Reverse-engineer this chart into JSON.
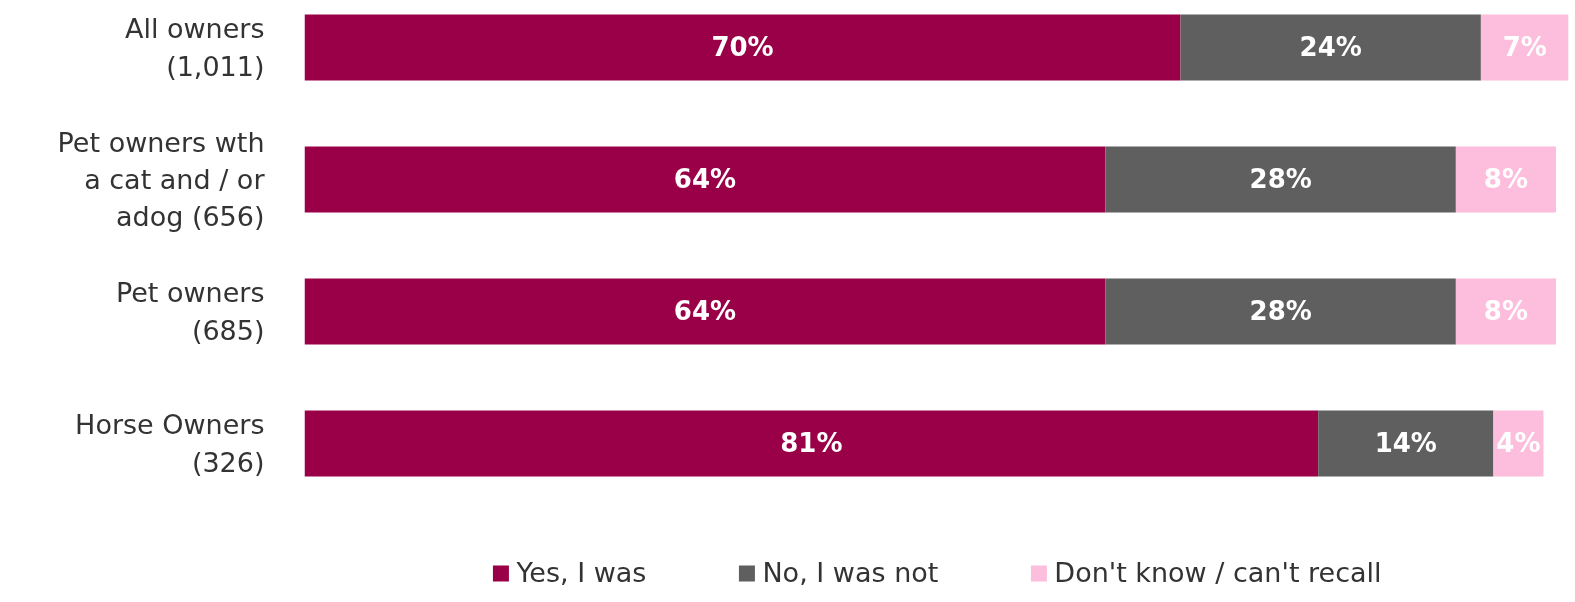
{
  "chart_data": {
    "type": "bar",
    "orientation": "horizontal",
    "stacked": true,
    "legend": "bottom",
    "grid": false,
    "categories": [
      "All owners (1,011)",
      "Pet owners wth a cat and / or adog (656)",
      "Pet owners (685)",
      "Horse Owners (326)"
    ],
    "series": [
      {
        "name": "Yes, I was",
        "color": "#990047",
        "values": [
          70,
          64,
          64,
          81
        ],
        "value_labels": [
          "70%",
          "64%",
          "64%",
          "81%"
        ]
      },
      {
        "name": "No, I was not",
        "color": "#5f5f5f",
        "values": [
          24,
          28,
          28,
          14
        ],
        "value_labels": [
          "24%",
          "28%",
          "28%",
          "14%"
        ]
      },
      {
        "name": "Don't know / can't recall",
        "color": "#fdbddc",
        "values": [
          7,
          8,
          8,
          4
        ],
        "value_labels": [
          "7%",
          "8%",
          "8%",
          "4%"
        ]
      }
    ]
  }
}
